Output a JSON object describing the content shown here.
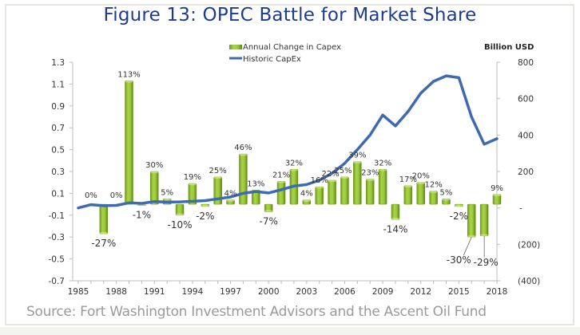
{
  "chart_data": {
    "type": "bar",
    "title": "Figure 13: OPEC Battle for Market Share",
    "source": "Source: Fort Washington Investment Advisors and the Ascent Oil Fund",
    "xlabel": "",
    "ylabel_left": "",
    "ylabel_right": "Billion USD",
    "grid": false,
    "legend_position": "top-center",
    "x": [
      1985,
      1986,
      1987,
      1988,
      1989,
      1990,
      1991,
      1992,
      1993,
      1994,
      1995,
      1996,
      1997,
      1998,
      1999,
      2000,
      2001,
      2002,
      2003,
      2004,
      2005,
      2006,
      2007,
      2008,
      2009,
      2010,
      2011,
      2012,
      2013,
      2014,
      2015,
      2016,
      2017,
      2018
    ],
    "x_tick_labels": [
      "1985",
      "1988",
      "1991",
      "1994",
      "1997",
      "2000",
      "2003",
      "2006",
      "2009",
      "2012",
      "2015",
      "2018"
    ],
    "y_left_ticks": [
      "1.3",
      "1.1",
      "0.9",
      "0.7",
      "0.5",
      "0.3",
      "0.1",
      "-0.1",
      "-0.3",
      "-0.5",
      "-0.7"
    ],
    "y_left_range": [
      -0.7,
      1.3
    ],
    "y_right_ticks": [
      "800",
      "600",
      "400",
      "200",
      "-",
      "(200)",
      "(400)"
    ],
    "y_right_range": [
      -400,
      800
    ],
    "series": [
      {
        "name": "Annual Change in Capex",
        "type": "bar",
        "axis": "left",
        "color": "#8dbb2a",
        "years": [
          1986,
          1987,
          1988,
          1989,
          1990,
          1991,
          1992,
          1993,
          1994,
          1995,
          1996,
          1997,
          1998,
          1999,
          2000,
          2001,
          2002,
          2003,
          2004,
          2005,
          2006,
          2007,
          2008,
          2009,
          2010,
          2011,
          2012,
          2013,
          2014,
          2015,
          2016,
          2017,
          2018
        ],
        "values": [
          0.0,
          -0.27,
          0.0,
          1.13,
          -0.01,
          0.3,
          0.05,
          -0.1,
          0.19,
          -0.02,
          0.25,
          0.04,
          0.46,
          0.13,
          -0.07,
          0.21,
          0.32,
          0.04,
          0.16,
          0.22,
          0.25,
          0.39,
          0.23,
          0.32,
          -0.14,
          0.17,
          0.2,
          0.12,
          0.05,
          -0.02,
          -0.3,
          -0.29,
          0.09
        ],
        "labels": [
          "0%",
          "-27%",
          "0%",
          "113%",
          "-1%",
          "30%",
          "5%",
          "-10%",
          "19%",
          "-2%",
          "25%",
          "4%",
          "46%",
          "13%",
          "-7%",
          "21%",
          "32%",
          "4%",
          "16%",
          "22%",
          "25%",
          "39%",
          "23%",
          "32%",
          "-14%",
          "17%",
          "20%",
          "12%",
          "5%",
          "-2%",
          "-30%",
          "-29%",
          "9%"
        ]
      },
      {
        "name": "Historic CapEx",
        "type": "line",
        "axis": "right",
        "color": "#3d6bb0",
        "years": [
          1985,
          1986,
          1987,
          1988,
          1989,
          1990,
          1991,
          1992,
          1993,
          1994,
          1995,
          1996,
          1997,
          1998,
          1999,
          2000,
          2001,
          2002,
          2003,
          2004,
          2005,
          2006,
          2007,
          2008,
          2009,
          2010,
          2011,
          2012,
          2013,
          2014,
          2015,
          2016,
          2017,
          2018
        ],
        "values": [
          0,
          18,
          12,
          14,
          28,
          25,
          35,
          32,
          33,
          36,
          40,
          50,
          60,
          80,
          90,
          82,
          100,
          120,
          128,
          152,
          190,
          245,
          320,
          400,
          510,
          450,
          530,
          630,
          695,
          725,
          715,
          500,
          350,
          380
        ]
      }
    ]
  }
}
